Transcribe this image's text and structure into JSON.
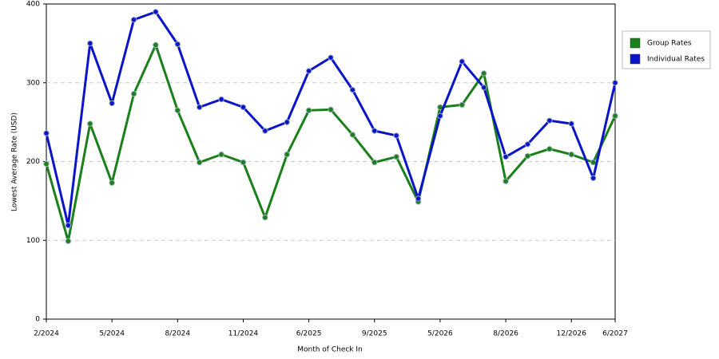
{
  "chart_data": {
    "type": "line",
    "x_label": "Month of Check In",
    "y_label": "Lowest Average Rate (USD)",
    "categories": [
      "2/2024",
      null,
      null,
      "5/2024",
      null,
      null,
      "8/2024",
      null,
      null,
      "11/2024",
      null,
      null,
      "6/2025",
      null,
      null,
      "9/2025",
      null,
      null,
      "5/2026",
      null,
      null,
      "8/2026",
      null,
      null,
      "12/2026",
      null,
      "6/2027"
    ],
    "series": [
      {
        "name": "Group Rates",
        "color": "#1a801a",
        "values": [
          197,
          99,
          248,
          173,
          286,
          348,
          265,
          199,
          209,
          199,
          129,
          209,
          265,
          266,
          234,
          199,
          206,
          149,
          269,
          272,
          312,
          175,
          207,
          216,
          209,
          199,
          258
        ]
      },
      {
        "name": "Individual Rates",
        "color": "#0a14c8",
        "values": [
          236,
          119,
          350,
          274,
          380,
          390,
          349,
          269,
          279,
          269,
          239,
          250,
          315,
          332,
          291,
          239,
          233,
          153,
          258,
          327,
          294,
          206,
          222,
          252,
          248,
          179,
          300
        ]
      }
    ],
    "ylim": [
      0,
      400
    ],
    "yticks": [
      0,
      100,
      200,
      300,
      400
    ],
    "grid": true,
    "legend": "right"
  }
}
